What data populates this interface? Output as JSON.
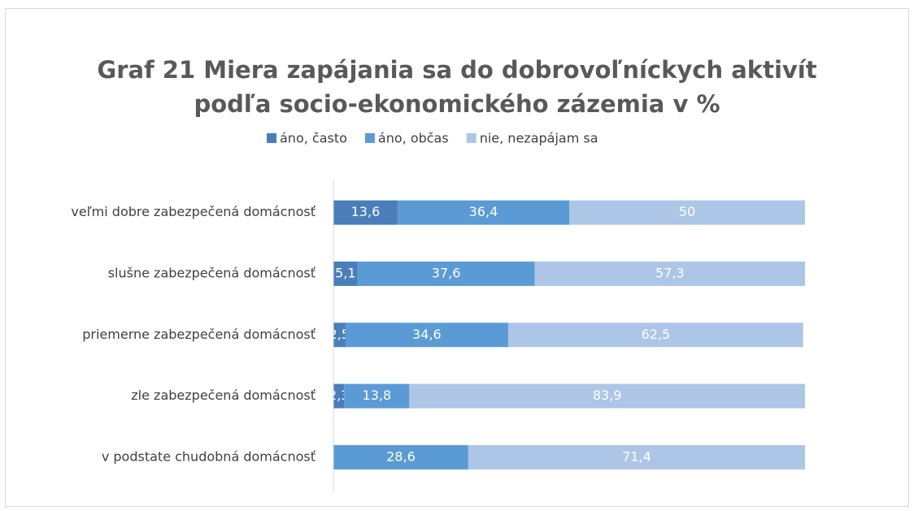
{
  "chart_data": {
    "type": "stacked_bar_horizontal",
    "title": [
      "Graf 21 Miera zapájania sa do dobrovoľníckych aktivít",
      "podľa socio-ekonomického zázemia v %"
    ],
    "categories": [
      "veľmi dobre zabezpečená domácnosť",
      "slušne zabezpečená domácnosť",
      "priemerne zabezpečená domácnosť",
      "zle zabezpečená domácnosť",
      "v podstate chudobná domácnosť"
    ],
    "series": [
      {
        "name": "áno, často",
        "color": "#4a7ebb",
        "values": [
          13.6,
          5.1,
          2.5,
          2.3,
          0
        ],
        "value_labels": [
          "13,6",
          "5,1",
          "2,5",
          "2,3",
          "0"
        ]
      },
      {
        "name": "áno, občas",
        "color": "#5b9bd5",
        "values": [
          36.4,
          37.6,
          34.6,
          13.8,
          28.6
        ],
        "value_labels": [
          "36,4",
          "37,6",
          "34,6",
          "13,8",
          "28,6"
        ]
      },
      {
        "name": "nie, nezapájam sa",
        "color": "#adc6e7",
        "values": [
          50,
          57.3,
          62.5,
          83.9,
          71.4
        ],
        "value_labels": [
          "50",
          "57,3",
          "62,5",
          "83,9",
          "71,4"
        ]
      }
    ],
    "xlim": [
      0,
      100
    ],
    "legend": "top"
  }
}
